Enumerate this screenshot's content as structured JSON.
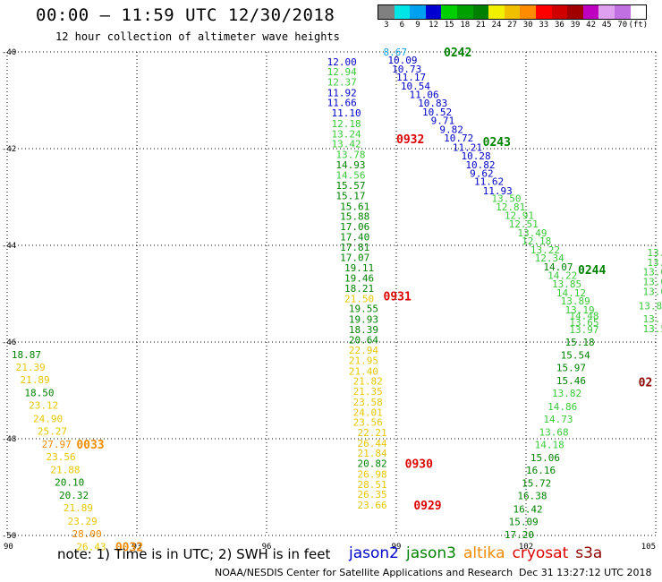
{
  "header": {
    "title": "00:00 – 11:59 UTC 12/30/2018",
    "subtitle": "12 hour collection of altimeter wave heights"
  },
  "legend": {
    "colors": [
      "#808080",
      "#00e5e5",
      "#00a0f0",
      "#0000d0",
      "#00d000",
      "#00a000",
      "#008000",
      "#f0f000",
      "#f0c000",
      "#ff8c00",
      "#ff0000",
      "#d00000",
      "#a00000",
      "#c000c0",
      "#e0a0f0",
      "#c070e0",
      "#ffffff"
    ],
    "ticks": [
      "3",
      "6",
      "9",
      "12",
      "15",
      "18",
      "21",
      "24",
      "27",
      "30",
      "33",
      "36",
      "39",
      "42",
      "45",
      "70",
      "(ft)"
    ]
  },
  "map": {
    "lon_labels": [
      "90",
      "93",
      "96",
      "99",
      "102",
      "105"
    ],
    "lat_labels": [
      "-40",
      "-42",
      "-44",
      "-46",
      "-48",
      "-50"
    ],
    "lon_range": [
      90,
      105
    ],
    "lat_range": [
      -40,
      -50
    ],
    "grid": "dotted"
  },
  "colors": {
    "blue": "#0000c8",
    "ltblue": "#19a0e6",
    "green": "#008200",
    "ltgreen": "#3cc83c",
    "yellow": "#e6c800",
    "orange": "#f08c00",
    "red": "#dc0000",
    "darkred": "#8c0000"
  },
  "obs": [
    {
      "v": "12.00",
      "c": "blue",
      "lon": 97.4,
      "lat": -40.2
    },
    {
      "v": "12.94",
      "c": "ltgreen",
      "lon": 97.4,
      "lat": -40.41
    },
    {
      "v": "12.37",
      "c": "ltgreen",
      "lon": 97.4,
      "lat": -40.62
    },
    {
      "v": "11.92",
      "c": "blue",
      "lon": 97.4,
      "lat": -40.84
    },
    {
      "v": "11.66",
      "c": "blue",
      "lon": 97.4,
      "lat": -41.05
    },
    {
      "v": "11.10",
      "c": "blue",
      "lon": 97.5,
      "lat": -41.26
    },
    {
      "v": "12.18",
      "c": "ltgreen",
      "lon": 97.5,
      "lat": -41.48
    },
    {
      "v": "13.24",
      "c": "ltgreen",
      "lon": 97.5,
      "lat": -41.69
    },
    {
      "v": "13.42",
      "c": "ltgreen",
      "lon": 97.5,
      "lat": -41.9
    },
    {
      "v": "13.78",
      "c": "ltgreen",
      "lon": 97.6,
      "lat": -42.12
    },
    {
      "v": "14.93",
      "c": "green",
      "lon": 97.6,
      "lat": -42.33
    },
    {
      "v": "14.56",
      "c": "ltgreen",
      "lon": 97.6,
      "lat": -42.55
    },
    {
      "v": "15.57",
      "c": "green",
      "lon": 97.6,
      "lat": -42.76
    },
    {
      "v": "15.17",
      "c": "green",
      "lon": 97.6,
      "lat": -42.97
    },
    {
      "v": "15.61",
      "c": "green",
      "lon": 97.7,
      "lat": -43.19
    },
    {
      "v": "15.88",
      "c": "green",
      "lon": 97.7,
      "lat": -43.4
    },
    {
      "v": "17.06",
      "c": "green",
      "lon": 97.7,
      "lat": -43.61
    },
    {
      "v": "17.40",
      "c": "green",
      "lon": 97.7,
      "lat": -43.82
    },
    {
      "v": "17.81",
      "c": "green",
      "lon": 97.7,
      "lat": -44.04
    },
    {
      "v": "17.07",
      "c": "green",
      "lon": 97.7,
      "lat": -44.25
    },
    {
      "v": "19.11",
      "c": "green",
      "lon": 97.8,
      "lat": -44.46
    },
    {
      "v": "19.46",
      "c": "green",
      "lon": 97.8,
      "lat": -44.68
    },
    {
      "v": "18.21",
      "c": "green",
      "lon": 97.8,
      "lat": -44.89
    },
    {
      "v": "21.50",
      "c": "yellow",
      "lon": 97.8,
      "lat": -45.1
    },
    {
      "v": "19.55",
      "c": "green",
      "lon": 97.9,
      "lat": -45.31
    },
    {
      "v": "19.93",
      "c": "green",
      "lon": 97.9,
      "lat": -45.53
    },
    {
      "v": "18.39",
      "c": "green",
      "lon": 97.9,
      "lat": -45.74
    },
    {
      "v": "20.64",
      "c": "green",
      "lon": 97.9,
      "lat": -45.95
    },
    {
      "v": "22.94",
      "c": "yellow",
      "lon": 97.9,
      "lat": -46.17
    },
    {
      "v": "21.95",
      "c": "yellow",
      "lon": 97.9,
      "lat": -46.38
    },
    {
      "v": "21.40",
      "c": "yellow",
      "lon": 97.9,
      "lat": -46.6
    },
    {
      "v": "21.82",
      "c": "yellow",
      "lon": 98.0,
      "lat": -46.81
    },
    {
      "v": "21.35",
      "c": "yellow",
      "lon": 98.0,
      "lat": -47.02
    },
    {
      "v": "23.58",
      "c": "yellow",
      "lon": 98.0,
      "lat": -47.24
    },
    {
      "v": "24.01",
      "c": "yellow",
      "lon": 98.0,
      "lat": -47.45
    },
    {
      "v": "23.56",
      "c": "yellow",
      "lon": 98.0,
      "lat": -47.66
    },
    {
      "v": "22.21",
      "c": "yellow",
      "lon": 98.1,
      "lat": -47.87
    },
    {
      "v": "26.44",
      "c": "yellow",
      "lon": 98.1,
      "lat": -48.09
    },
    {
      "v": "21.84",
      "c": "yellow",
      "lon": 98.1,
      "lat": -48.3
    },
    {
      "v": "20.82",
      "c": "green",
      "lon": 98.1,
      "lat": -48.51
    },
    {
      "v": "26.98",
      "c": "yellow",
      "lon": 98.1,
      "lat": -48.73
    },
    {
      "v": "28.51",
      "c": "yellow",
      "lon": 98.1,
      "lat": -48.94
    },
    {
      "v": "26.35",
      "c": "yellow",
      "lon": 98.1,
      "lat": -49.15
    },
    {
      "v": "23.66",
      "c": "yellow",
      "lon": 98.1,
      "lat": -49.37
    },
    {
      "v": "8.67",
      "c": "ltblue",
      "lon": 98.7,
      "lat": -40.0
    },
    {
      "v": "10.09",
      "c": "blue",
      "lon": 98.8,
      "lat": -40.17
    },
    {
      "v": "10.73",
      "c": "blue",
      "lon": 98.9,
      "lat": -40.35
    },
    {
      "v": "11.17",
      "c": "blue",
      "lon": 99.0,
      "lat": -40.52
    },
    {
      "v": "10.54",
      "c": "blue",
      "lon": 99.1,
      "lat": -40.7
    },
    {
      "v": "11.06",
      "c": "blue",
      "lon": 99.3,
      "lat": -40.88
    },
    {
      "v": "10.83",
      "c": "blue",
      "lon": 99.5,
      "lat": -41.06
    },
    {
      "v": "10.52",
      "c": "blue",
      "lon": 99.6,
      "lat": -41.24
    },
    {
      "v": "9.71",
      "c": "blue",
      "lon": 99.8,
      "lat": -41.42
    },
    {
      "v": "9.82",
      "c": "blue",
      "lon": 100.0,
      "lat": -41.6
    },
    {
      "v": "10.72",
      "c": "blue",
      "lon": 100.1,
      "lat": -41.78
    },
    {
      "v": "11.21",
      "c": "blue",
      "lon": 100.3,
      "lat": -41.97
    },
    {
      "v": "10.28",
      "c": "blue",
      "lon": 100.5,
      "lat": -42.15
    },
    {
      "v": "10.82",
      "c": "blue",
      "lon": 100.6,
      "lat": -42.33
    },
    {
      "v": "9.62",
      "c": "blue",
      "lon": 100.7,
      "lat": -42.51
    },
    {
      "v": "11.62",
      "c": "blue",
      "lon": 100.8,
      "lat": -42.68
    },
    {
      "v": "11.93",
      "c": "blue",
      "lon": 101.0,
      "lat": -42.87
    },
    {
      "v": "13.50",
      "c": "ltgreen",
      "lon": 101.2,
      "lat": -43.03
    },
    {
      "v": "12.81",
      "c": "ltgreen",
      "lon": 101.3,
      "lat": -43.2
    },
    {
      "v": "12.91",
      "c": "ltgreen",
      "lon": 101.5,
      "lat": -43.38
    },
    {
      "v": "12.51",
      "c": "ltgreen",
      "lon": 101.6,
      "lat": -43.56
    },
    {
      "v": "13.49",
      "c": "ltgreen",
      "lon": 101.8,
      "lat": -43.74
    },
    {
      "v": "12.18",
      "c": "ltgreen",
      "lon": 101.9,
      "lat": -43.91
    },
    {
      "v": "13.22",
      "c": "ltgreen",
      "lon": 102.1,
      "lat": -44.09
    },
    {
      "v": "12.34",
      "c": "ltgreen",
      "lon": 102.2,
      "lat": -44.26
    },
    {
      "v": "14.07",
      "c": "green",
      "lon": 102.4,
      "lat": -44.44
    },
    {
      "v": "14.22",
      "c": "ltgreen",
      "lon": 102.5,
      "lat": -44.62
    },
    {
      "v": "13.85",
      "c": "ltgreen",
      "lon": 102.6,
      "lat": -44.8
    },
    {
      "v": "14.12",
      "c": "ltgreen",
      "lon": 102.7,
      "lat": -44.98
    },
    {
      "v": "13.89",
      "c": "ltgreen",
      "lon": 102.8,
      "lat": -45.15
    },
    {
      "v": "13.19",
      "c": "ltgreen",
      "lon": 102.9,
      "lat": -45.33
    },
    {
      "v": "14.48",
      "c": "ltgreen",
      "lon": 103.0,
      "lat": -45.45
    },
    {
      "v": "13.65",
      "c": "ltgreen",
      "lon": 103.0,
      "lat": -45.59
    },
    {
      "v": "13.97",
      "c": "ltgreen",
      "lon": 103.0,
      "lat": -45.74
    },
    {
      "v": "15.18",
      "c": "green",
      "lon": 102.9,
      "lat": -46.0
    },
    {
      "v": "15.54",
      "c": "green",
      "lon": 102.8,
      "lat": -46.27
    },
    {
      "v": "15.97",
      "c": "green",
      "lon": 102.7,
      "lat": -46.53
    },
    {
      "v": "15.46",
      "c": "green",
      "lon": 102.7,
      "lat": -46.8
    },
    {
      "v": "13.82",
      "c": "ltgreen",
      "lon": 102.6,
      "lat": -47.06
    },
    {
      "v": "14.86",
      "c": "ltgreen",
      "lon": 102.5,
      "lat": -47.33
    },
    {
      "v": "14.73",
      "c": "ltgreen",
      "lon": 102.4,
      "lat": -47.59
    },
    {
      "v": "13.68",
      "c": "ltgreen",
      "lon": 102.3,
      "lat": -47.86
    },
    {
      "v": "14.18",
      "c": "ltgreen",
      "lon": 102.2,
      "lat": -48.12
    },
    {
      "v": "15.06",
      "c": "green",
      "lon": 102.1,
      "lat": -48.39
    },
    {
      "v": "16.16",
      "c": "green",
      "lon": 102.0,
      "lat": -48.65
    },
    {
      "v": "15.72",
      "c": "green",
      "lon": 101.9,
      "lat": -48.92
    },
    {
      "v": "16.38",
      "c": "green",
      "lon": 101.8,
      "lat": -49.18
    },
    {
      "v": "16.42",
      "c": "green",
      "lon": 101.7,
      "lat": -49.45
    },
    {
      "v": "15.09",
      "c": "green",
      "lon": 101.6,
      "lat": -49.71
    },
    {
      "v": "17.20",
      "c": "green",
      "lon": 101.5,
      "lat": -49.98
    },
    {
      "v": "13.",
      "c": "ltgreen",
      "lon": 104.8,
      "lat": -44.15
    },
    {
      "v": "13.",
      "c": "ltgreen",
      "lon": 104.8,
      "lat": -44.35
    },
    {
      "v": "13.0",
      "c": "ltgreen",
      "lon": 104.7,
      "lat": -44.55
    },
    {
      "v": "13.0",
      "c": "ltgreen",
      "lon": 104.7,
      "lat": -44.75
    },
    {
      "v": "13.0",
      "c": "ltgreen",
      "lon": 104.7,
      "lat": -44.95
    },
    {
      "v": "13.80",
      "c": "ltgreen",
      "lon": 104.6,
      "lat": -45.25
    },
    {
      "v": "13.",
      "c": "ltgreen",
      "lon": 104.7,
      "lat": -45.52
    },
    {
      "v": "13.5",
      "c": "ltgreen",
      "lon": 104.7,
      "lat": -45.72
    },
    {
      "v": "18.87",
      "c": "green",
      "lon": 90.1,
      "lat": -46.26
    },
    {
      "v": "21.39",
      "c": "yellow",
      "lon": 90.2,
      "lat": -46.52
    },
    {
      "v": "21.89",
      "c": "yellow",
      "lon": 90.3,
      "lat": -46.78
    },
    {
      "v": "18.50",
      "c": "green",
      "lon": 90.4,
      "lat": -47.05
    },
    {
      "v": "23.12",
      "c": "yellow",
      "lon": 90.5,
      "lat": -47.31
    },
    {
      "v": "24.90",
      "c": "yellow",
      "lon": 90.6,
      "lat": -47.58
    },
    {
      "v": "25.27",
      "c": "yellow",
      "lon": 90.7,
      "lat": -47.84
    },
    {
      "v": "27.97",
      "c": "orange",
      "lon": 90.8,
      "lat": -48.11
    },
    {
      "v": "23.56",
      "c": "yellow",
      "lon": 90.9,
      "lat": -48.37
    },
    {
      "v": "21.88",
      "c": "yellow",
      "lon": 91.0,
      "lat": -48.64
    },
    {
      "v": "20.10",
      "c": "green",
      "lon": 91.1,
      "lat": -48.9
    },
    {
      "v": "20.32",
      "c": "green",
      "lon": 91.2,
      "lat": -49.17
    },
    {
      "v": "21.89",
      "c": "yellow",
      "lon": 91.3,
      "lat": -49.43
    },
    {
      "v": "23.29",
      "c": "yellow",
      "lon": 91.4,
      "lat": -49.7
    },
    {
      "v": "28.00",
      "c": "orange",
      "lon": 91.5,
      "lat": -49.96
    },
    {
      "v": "26.43",
      "c": "yellow",
      "lon": 91.6,
      "lat": -50.23
    }
  ],
  "times": [
    {
      "t": "0242",
      "c": "green",
      "lon": 100.1,
      "lat": -40.0
    },
    {
      "t": "0932",
      "c": "red",
      "lon": 99.0,
      "lat": -41.8
    },
    {
      "t": "0243",
      "c": "green",
      "lon": 101.0,
      "lat": -41.85
    },
    {
      "t": "0244",
      "c": "green",
      "lon": 103.2,
      "lat": -44.5
    },
    {
      "t": "0931",
      "c": "red",
      "lon": 98.7,
      "lat": -45.05
    },
    {
      "t": "02",
      "c": "darkred",
      "lon": 104.6,
      "lat": -46.82
    },
    {
      "t": "0033",
      "c": "orange",
      "lon": 91.6,
      "lat": -48.11
    },
    {
      "t": "0930",
      "c": "red",
      "lon": 99.2,
      "lat": -48.51
    },
    {
      "t": "0929",
      "c": "red",
      "lon": 99.4,
      "lat": -49.37
    },
    {
      "t": "0032",
      "c": "orange",
      "lon": 92.5,
      "lat": -50.23
    }
  ],
  "footer": {
    "note": "note: 1) Time is in UTC; 2) SWH is in feet",
    "satellites": [
      {
        "name": "jason2",
        "color": "#0000c8"
      },
      {
        "name": "jason3",
        "color": "#008200"
      },
      {
        "name": "altika",
        "color": "#f08c00"
      },
      {
        "name": "cryosat",
        "color": "#dc0000"
      },
      {
        "name": "s3a",
        "color": "#8c0000"
      }
    ],
    "credit": "NOAA/NESDIS Center for Satellite Applications and Research",
    "timestamp": "Dec 31 13:27:12 UTC 2018"
  }
}
